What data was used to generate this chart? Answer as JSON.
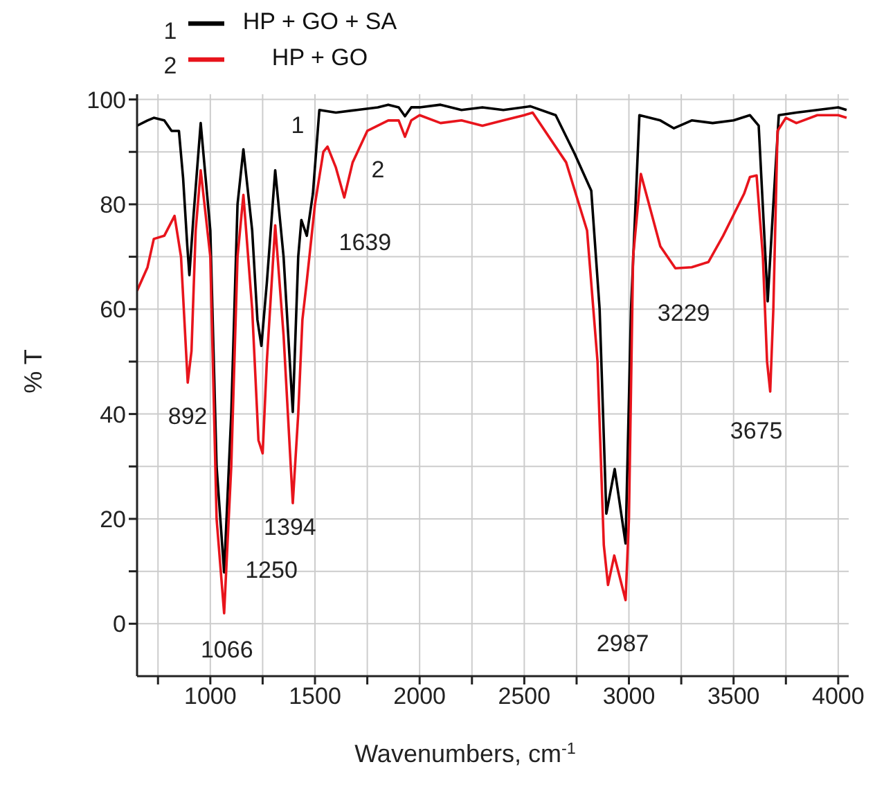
{
  "chart_data": {
    "type": "line",
    "xlabel": "Wavenumbers, cm$^{-1}$",
    "ylabel": "% T",
    "xlim": [
      650,
      4050
    ],
    "ylim": [
      -10,
      101
    ],
    "xticks": [
      {
        "value": 750,
        "label": null
      },
      1000,
      {
        "value": 1250,
        "label": null
      },
      1500,
      {
        "value": 1750,
        "label": null
      },
      2000,
      {
        "value": 2250,
        "label": null
      },
      2500,
      {
        "value": 2750,
        "label": null
      },
      3000,
      {
        "value": 3250,
        "label": null
      },
      3500,
      {
        "value": 3750,
        "label": null
      },
      4000
    ],
    "yticks": [
      0,
      {
        "value": 10,
        "label": null
      },
      20,
      {
        "value": 30,
        "label": null
      },
      40,
      {
        "value": 50,
        "label": null
      },
      60,
      {
        "value": 70,
        "label": null
      },
      80,
      {
        "value": 90,
        "label": null
      },
      100
    ],
    "grid": true,
    "legend": "top left",
    "marker": "none",
    "line_style": "solid",
    "series": [
      {
        "name": "HP + GO + SA",
        "color": "#000000",
        "x": [
          650,
          700,
          730,
          780,
          815,
          850,
          870,
          890,
          900,
          920,
          954,
          1000,
          1030,
          1066,
          1100,
          1130,
          1158,
          1200,
          1225,
          1244,
          1270,
          1310,
          1350,
          1394,
          1420,
          1435,
          1461,
          1490,
          1521,
          1600,
          1700,
          1800,
          1850,
          1900,
          1930,
          1960,
          2000,
          2100,
          2200,
          2300,
          2400,
          2529,
          2650,
          2740,
          2820,
          2860,
          2892,
          2932,
          2984,
          3010,
          3050,
          3150,
          3215,
          3300,
          3400,
          3500,
          3578,
          3620,
          3663,
          3690,
          3716,
          3800,
          3900,
          4000,
          4040
        ],
        "values": [
          95,
          96,
          96.5,
          96,
          94,
          94,
          85,
          72,
          66.5,
          78,
          95.5,
          75,
          30,
          9.8,
          40,
          80,
          90.5,
          75,
          58,
          53,
          65,
          86.5,
          70,
          40.4,
          70,
          77,
          74,
          82,
          98,
          97.5,
          98,
          98.5,
          99,
          98.5,
          96.8,
          98.5,
          98.5,
          99,
          98,
          98.5,
          98,
          98.7,
          97,
          89.7,
          82.6,
          60,
          21,
          29.5,
          15.3,
          60,
          97,
          96,
          94.5,
          96,
          95.5,
          96,
          97,
          95,
          61.5,
          80,
          97,
          97.5,
          98,
          98.5,
          98
        ]
      },
      {
        "name": "HP + GO",
        "color": "#e8141c",
        "x": [
          650,
          700,
          730,
          780,
          829,
          860,
          880,
          892,
          910,
          930,
          954,
          1000,
          1030,
          1066,
          1100,
          1130,
          1158,
          1200,
          1230,
          1250,
          1270,
          1310,
          1350,
          1394,
          1420,
          1440,
          1460,
          1500,
          1540,
          1560,
          1600,
          1640,
          1680,
          1750,
          1850,
          1900,
          1930,
          1960,
          2000,
          2100,
          2200,
          2300,
          2400,
          2500,
          2540,
          2700,
          2800,
          2850,
          2880,
          2900,
          2930,
          2984,
          3000,
          3020,
          3057,
          3150,
          3222,
          3300,
          3380,
          3450,
          3550,
          3578,
          3610,
          3640,
          3660,
          3675,
          3690,
          3710,
          3750,
          3800,
          3900,
          4000,
          4040
        ],
        "values": [
          63.5,
          68,
          73.4,
          74,
          77.8,
          70,
          55,
          46,
          52,
          75,
          86.5,
          70,
          20,
          2,
          30,
          70,
          81.8,
          60,
          35,
          32.5,
          50,
          76,
          55,
          23,
          40,
          58,
          65,
          80,
          90,
          91,
          87,
          81.3,
          88,
          94,
          96,
          96,
          92.9,
          96,
          97,
          95.5,
          96,
          95,
          96,
          97,
          97.5,
          88,
          75,
          50,
          15,
          7.4,
          13,
          4.5,
          20,
          70,
          85.8,
          72,
          67.8,
          68,
          69,
          74,
          82,
          85.2,
          85.5,
          70,
          50,
          44.3,
          60,
          94,
          96.5,
          95.5,
          97,
          97,
          96.5
        ]
      }
    ],
    "annotations": [
      "1",
      "2",
      {
        "text": "892",
        "x": 892,
        "y": 46
      },
      {
        "text": "1066",
        "x": 1066,
        "y": 2
      },
      "1250",
      {
        "text": "1394",
        "x": 1394,
        "y": 23
      },
      {
        "text": "1639",
        "x": 1640,
        "y": 81.3
      },
      {
        "text": "2987",
        "x": 2984,
        "y": 4.5
      },
      {
        "text": "3229",
        "x": 3222,
        "y": 67.8
      },
      {
        "text": "3675",
        "x": 3675,
        "y": 44.3
      },
      "1",
      "2"
    ]
  }
}
